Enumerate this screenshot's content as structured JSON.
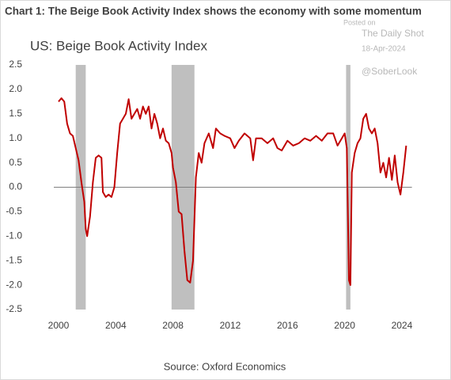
{
  "chart_data": {
    "type": "line",
    "title": "Chart 1: The Beige Book Activity Index shows the economy with some momentum",
    "subtitle": "US: Beige Book Activity Index",
    "source": "Source: Oxford Economics",
    "watermark": [
      "Posted on",
      "The Daily Shot",
      "18-Apr-2024",
      "@SoberLook"
    ],
    "xlim": [
      2000,
      2024.7
    ],
    "xticks": [
      2000,
      2004,
      2008,
      2012,
      2016,
      2020,
      2024
    ],
    "ylim": [
      -2.5,
      2.5
    ],
    "yticks": [
      2.5,
      {
        "value": 2,
        "label": "2.0"
      },
      1.5,
      {
        "value": 1,
        "label": "1.0"
      },
      0.5,
      {
        "value": 0,
        "label": "0.0"
      },
      -0.5,
      {
        "value": -1,
        "label": "-1.0"
      },
      -1.5,
      {
        "value": -2,
        "label": "-2.0"
      },
      -2.5
    ],
    "shaded_periods": [
      [
        2001.2,
        2001.9
      ],
      [
        2007.9,
        2009.5
      ],
      [
        2020.1,
        2020.4
      ]
    ],
    "shade_color": "#bfbfbf",
    "x": [
      2000.0,
      2000.2,
      2000.4,
      2000.6,
      2000.8,
      2001.0,
      2001.2,
      2001.4,
      2001.6,
      2001.8,
      2001.9,
      2002.0,
      2002.2,
      2002.4,
      2002.6,
      2002.8,
      2003.0,
      2003.1,
      2003.3,
      2003.5,
      2003.7,
      2003.9,
      2004.1,
      2004.3,
      2004.5,
      2004.7,
      2004.9,
      2005.1,
      2005.3,
      2005.5,
      2005.7,
      2005.9,
      2006.1,
      2006.3,
      2006.5,
      2006.7,
      2006.9,
      2007.1,
      2007.3,
      2007.5,
      2007.7,
      2007.9,
      2008.0,
      2008.2,
      2008.4,
      2008.6,
      2008.8,
      2009.0,
      2009.2,
      2009.4,
      2009.6,
      2009.8,
      2010.0,
      2010.2,
      2010.5,
      2010.8,
      2011.0,
      2011.3,
      2011.6,
      2012.0,
      2012.3,
      2012.6,
      2013.0,
      2013.4,
      2013.6,
      2013.8,
      2014.2,
      2014.6,
      2015.0,
      2015.3,
      2015.6,
      2016.0,
      2016.4,
      2016.8,
      2017.2,
      2017.6,
      2018.0,
      2018.4,
      2018.8,
      2019.2,
      2019.5,
      2019.8,
      2020.0,
      2020.15,
      2020.3,
      2020.4,
      2020.5,
      2020.7,
      2020.9,
      2021.1,
      2021.3,
      2021.5,
      2021.7,
      2021.9,
      2022.1,
      2022.3,
      2022.5,
      2022.7,
      2022.9,
      2023.1,
      2023.3,
      2023.5,
      2023.7,
      2023.9,
      2024.1,
      2024.3
    ],
    "series": [
      {
        "name": "US: Beige Book Activity Index",
        "color": "#c00000",
        "values": [
          1.75,
          1.82,
          1.75,
          1.3,
          1.1,
          1.05,
          0.8,
          0.55,
          0.1,
          -0.3,
          -0.85,
          -1.0,
          -0.6,
          0.1,
          0.6,
          0.65,
          0.6,
          -0.1,
          -0.2,
          -0.15,
          -0.2,
          0.0,
          0.7,
          1.3,
          1.4,
          1.5,
          1.8,
          1.4,
          1.5,
          1.6,
          1.4,
          1.65,
          1.5,
          1.65,
          1.2,
          1.5,
          1.3,
          1.0,
          1.2,
          0.95,
          0.9,
          0.7,
          0.4,
          0.1,
          -0.5,
          -0.55,
          -1.3,
          -1.9,
          -1.95,
          -1.5,
          0.2,
          0.7,
          0.5,
          0.9,
          1.1,
          0.8,
          1.2,
          1.1,
          1.05,
          1.0,
          0.8,
          0.95,
          1.1,
          1.0,
          0.55,
          1.0,
          1.0,
          0.9,
          1.0,
          0.8,
          0.75,
          0.95,
          0.85,
          0.9,
          1.0,
          0.95,
          1.05,
          0.95,
          1.1,
          1.1,
          0.85,
          1.0,
          1.1,
          0.8,
          -1.9,
          -2.0,
          0.3,
          0.7,
          0.9,
          1.0,
          1.4,
          1.5,
          1.2,
          1.1,
          1.2,
          0.9,
          0.3,
          0.5,
          0.2,
          0.6,
          0.15,
          0.65,
          0.1,
          -0.15,
          0.3,
          0.85
        ]
      }
    ]
  }
}
